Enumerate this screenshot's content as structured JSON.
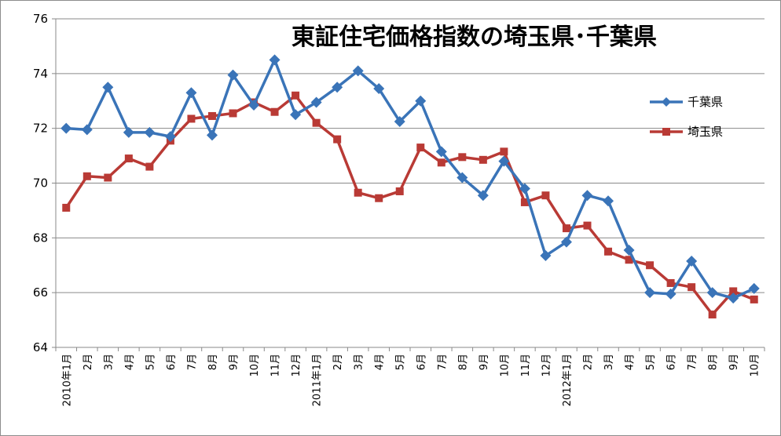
{
  "chart_data": {
    "type": "line",
    "title": "東証住宅価格指数の埼玉県･千葉県",
    "xlabel": "",
    "ylabel": "",
    "ylim": [
      64,
      76
    ],
    "yticks": [
      64,
      66,
      68,
      70,
      72,
      74,
      76
    ],
    "grid": true,
    "legend_position": "right",
    "categories": [
      "2010年1月",
      "2月",
      "3月",
      "4月",
      "5月",
      "6月",
      "7月",
      "8月",
      "9月",
      "10月",
      "11月",
      "12月",
      "2011年1月",
      "2月",
      "3月",
      "4月",
      "5月",
      "6月",
      "7月",
      "8月",
      "9月",
      "10月",
      "11月",
      "12月",
      "2012年1月",
      "2月",
      "3月",
      "4月",
      "5月",
      "6月",
      "7月",
      "8月",
      "9月",
      "10月"
    ],
    "series": [
      {
        "name": "千葉県",
        "color": "#3a74b8",
        "marker": "diamond",
        "values": [
          72.0,
          71.95,
          73.5,
          71.85,
          71.85,
          71.7,
          73.3,
          71.75,
          73.95,
          72.85,
          74.5,
          72.5,
          72.95,
          73.5,
          74.1,
          73.45,
          72.25,
          73.0,
          71.15,
          70.2,
          69.55,
          70.8,
          69.8,
          67.35,
          67.85,
          69.55,
          69.35,
          67.55,
          66.0,
          65.95,
          67.15,
          66.0,
          65.8,
          66.15
        ]
      },
      {
        "name": "埼玉県",
        "color": "#b93a35",
        "marker": "square",
        "values": [
          69.1,
          70.25,
          70.2,
          70.9,
          70.6,
          71.55,
          72.35,
          72.45,
          72.55,
          72.95,
          72.6,
          73.2,
          72.2,
          71.6,
          69.65,
          69.45,
          69.7,
          71.3,
          70.75,
          70.95,
          70.85,
          71.15,
          69.3,
          69.55,
          68.35,
          68.45,
          67.5,
          67.2,
          67.0,
          66.35,
          66.2,
          65.2,
          66.05,
          65.75
        ]
      }
    ]
  }
}
